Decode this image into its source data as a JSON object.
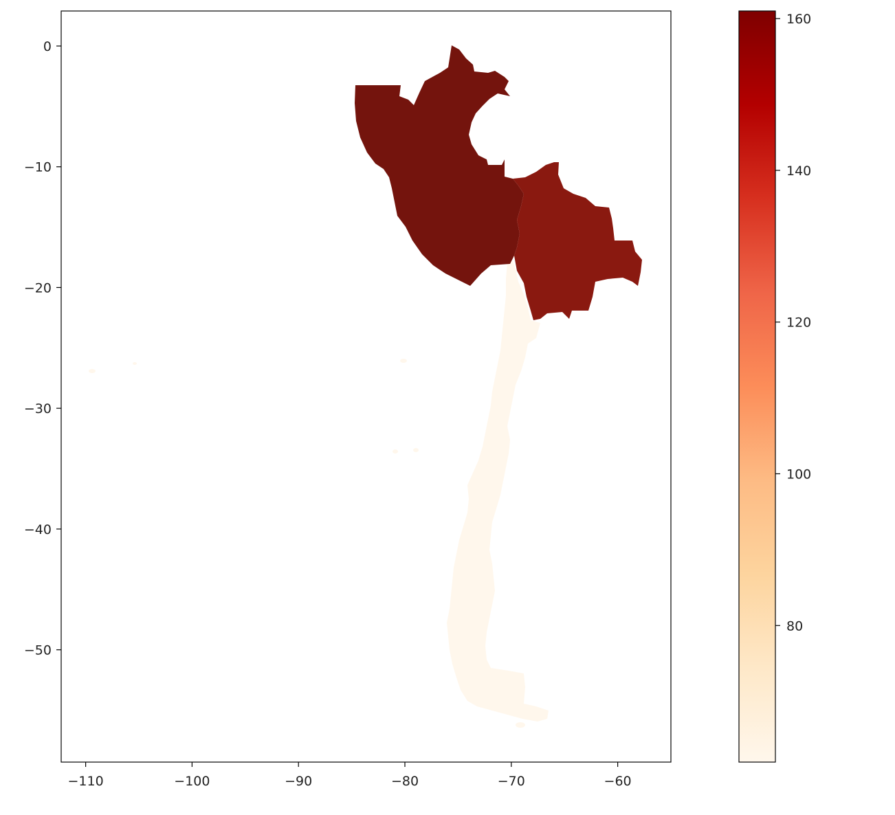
{
  "map": {
    "x_axis": {
      "range": [
        -112.3,
        -55
      ],
      "ticks": [
        -110,
        -100,
        -90,
        -80,
        -70,
        -60
      ],
      "tick_labels": [
        "−110",
        "−100",
        "−90",
        "−80",
        "−70",
        "−60"
      ]
    },
    "y_axis": {
      "range": [
        -59.3,
        2.9
      ],
      "ticks": [
        0,
        -10,
        -20,
        -30,
        -40,
        -50
      ],
      "tick_labels": [
        "0",
        "−10",
        "−20",
        "−30",
        "−40",
        "−50"
      ]
    },
    "regions": [
      {
        "name_shown": false,
        "value": 161,
        "color": "#74140d"
      },
      {
        "name_shown": false,
        "value": 158,
        "color": "#8a1910"
      },
      {
        "name_shown": false,
        "value": 62,
        "color": "#fff7ec"
      }
    ]
  },
  "colorbar": {
    "colormap": "OrRd",
    "range": [
      62,
      161
    ],
    "ticks": [
      80,
      100,
      120,
      140,
      160
    ],
    "tick_labels": [
      "80",
      "100",
      "120",
      "140",
      "160"
    ],
    "stops": [
      "#fff7ec",
      "#fee8c8",
      "#fdd49e",
      "#fdbb84",
      "#fc8d59",
      "#ef6548",
      "#d7301f",
      "#b30000",
      "#7f0000"
    ]
  }
}
